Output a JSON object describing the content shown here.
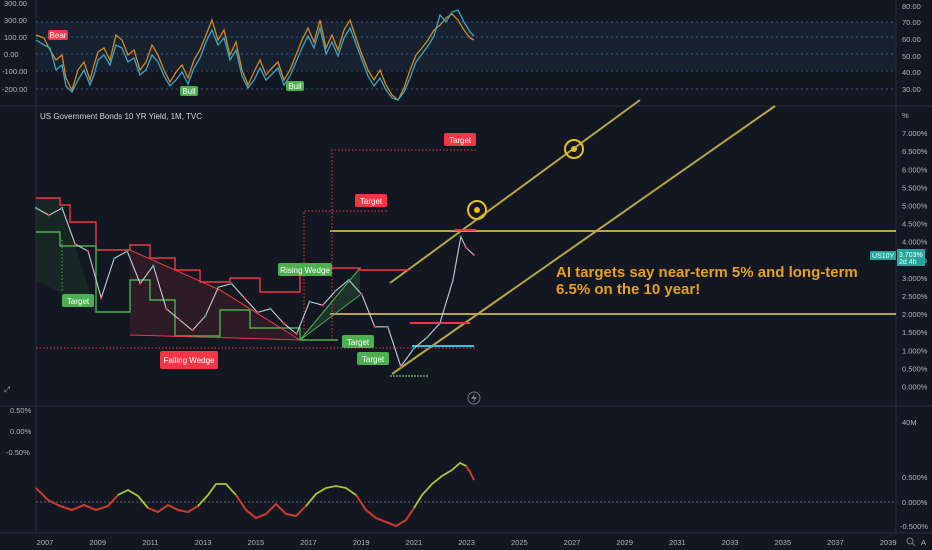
{
  "chart_title": "US Government Bonds 10 YR Yield, 1M, TVC",
  "annotation_line1": "AI targets say near-term 5% and long-term",
  "annotation_line2": "6.5% on the 10 year!",
  "labels": {
    "bear": "Bear",
    "bull1": "Bull",
    "bull2": "Bull",
    "target1": "Target",
    "target2": "Target",
    "target3": "Target",
    "target4": "Target",
    "target5": "Target",
    "rising_wedge": "Rising Wedge",
    "falling_wedge": "Falling Wedge"
  },
  "price_badge": {
    "symbol": "US10Y",
    "value": "3.703%",
    "time": "2d 4h"
  },
  "x_axis_years": [
    "2007",
    "2009",
    "2011",
    "2013",
    "2015",
    "2017",
    "2019",
    "2021",
    "2023",
    "2025",
    "2027",
    "2029",
    "2031",
    "2033",
    "2035",
    "2037",
    "2039"
  ],
  "osc_top_left_ticks": [
    "300.00",
    "200.00",
    "100.00",
    "0.00",
    "-100.00",
    "-200.00"
  ],
  "osc_top_right_ticks": [
    "80.00",
    "70.00",
    "60.00",
    "50.00",
    "40.00",
    "30.00"
  ],
  "main_right_ticks": [
    "%",
    "7.000%",
    "6.500%",
    "6.000%",
    "5.500%",
    "5.000%",
    "4.500%",
    "4.000%",
    "3.500%",
    "3.000%",
    "2.500%",
    "2.000%",
    "1.500%",
    "1.000%",
    "0.500%",
    "0.000%"
  ],
  "lower_left_ticks": [
    "0.50%",
    "0.00%",
    "-0.50%"
  ],
  "lower_right_ticks": [
    "40M",
    "0.500%",
    "0.000%",
    "-0.500%"
  ],
  "icons": {
    "compare": "lightning-icon",
    "zoom": "zoom-icon",
    "auto": "A"
  },
  "colors": {
    "background": "#131722",
    "channel": "#b5a642",
    "red": "#f23645",
    "green": "#26a69a",
    "label_green": "#4caf50",
    "annotation": "#e8a020",
    "badge": "#26a69a"
  },
  "chart_data": {
    "type": "line",
    "title": "US Government Bonds 10 YR Yield, 1M, TVC",
    "x_label": "",
    "y_label": "",
    "x": [
      2006.5,
      2007,
      2007.5,
      2008,
      2008.5,
      2009,
      2009.5,
      2010,
      2010.5,
      2011,
      2011.5,
      2012,
      2012.5,
      2013,
      2013.5,
      2014,
      2014.5,
      2015,
      2015.5,
      2016,
      2016.5,
      2017,
      2017.5,
      2018,
      2018.5,
      2019,
      2019.5,
      2020,
      2020.5,
      2021,
      2021.5,
      2022,
      2022.5,
      2022.8,
      2023,
      2023.3
    ],
    "series": [
      {
        "values": [
          5.0,
          4.8,
          5.0,
          4.0,
          3.8,
          2.5,
          3.6,
          3.8,
          2.9,
          3.4,
          2.2,
          1.9,
          1.6,
          2.0,
          2.8,
          2.9,
          2.5,
          2.1,
          2.2,
          1.8,
          1.5,
          2.4,
          2.3,
          2.7,
          3.0,
          2.6,
          1.7,
          1.7,
          0.6,
          1.1,
          1.4,
          1.8,
          3.0,
          4.2,
          3.9,
          3.7
        ]
      }
    ],
    "y_range": [
      0,
      7
    ],
    "x_range": [
      2006.5,
      2039.5
    ],
    "targets": [
      6.5,
      5.0
    ],
    "horizontal_levels": [
      4.35,
      2.05
    ]
  }
}
